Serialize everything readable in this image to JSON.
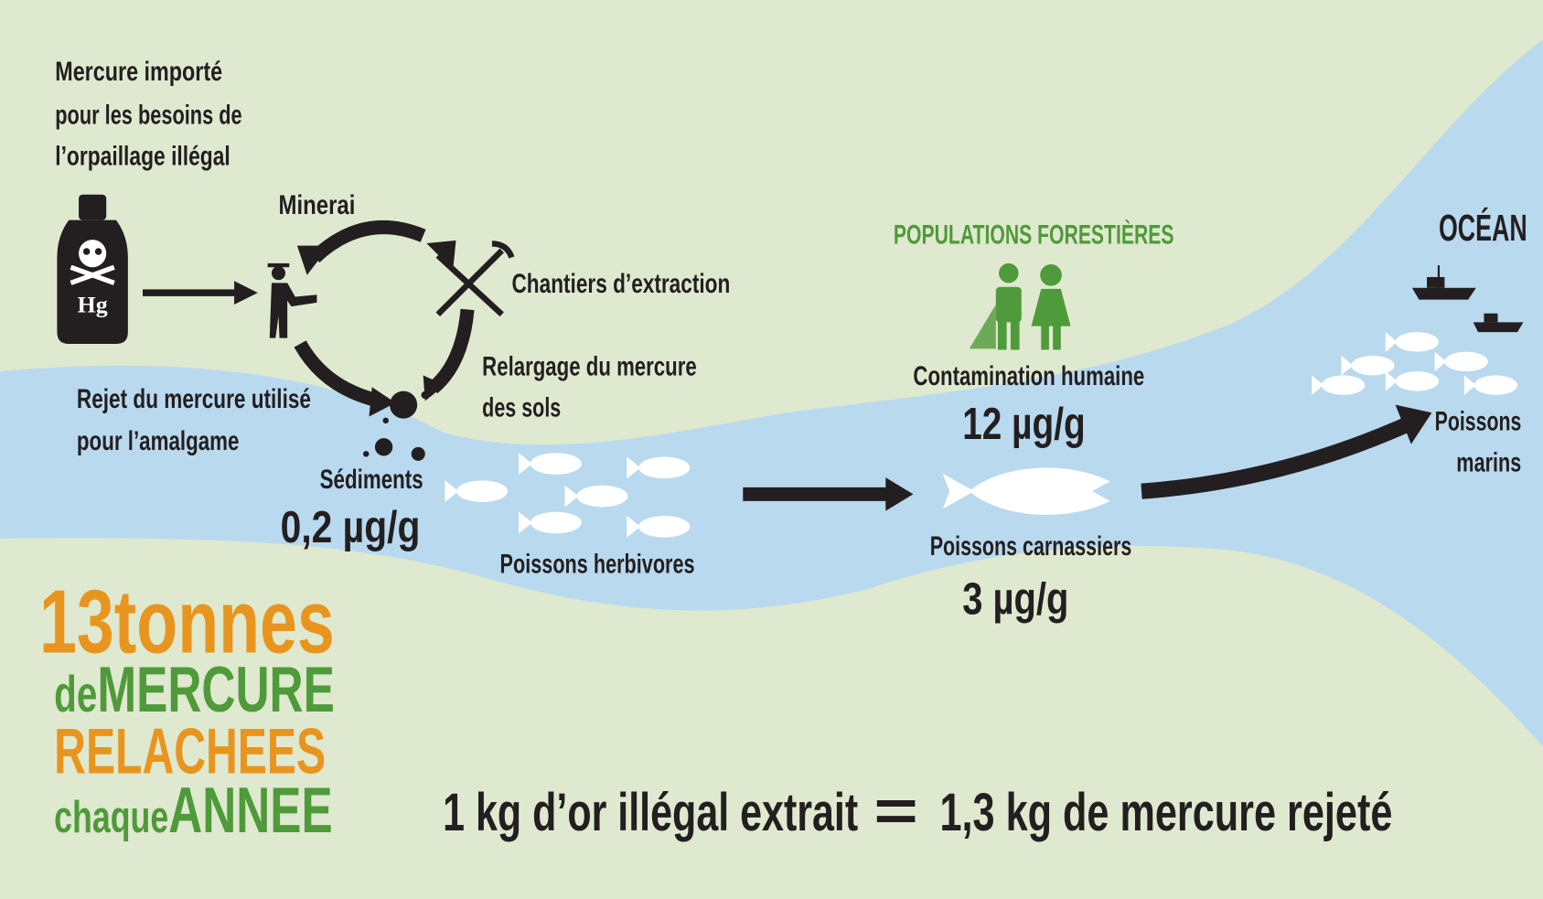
{
  "import": [
    "Mercure importé",
    "pour les besoins de",
    "l’orpaillage illégal"
  ],
  "bottle_label": "Hg",
  "minerai": "Minerai",
  "chantiers": "Chantiers d’extraction",
  "relargage": [
    "Relargage du mercure",
    "des sols"
  ],
  "rejet": [
    "Rejet du mercure utilisé",
    "pour l’amalgame"
  ],
  "sediments": {
    "label": "Sédiments",
    "value": "0,2 µg/g"
  },
  "herbivores": "Poissons herbivores",
  "populations": {
    "title": "POPULATIONS FORESTIÈRES",
    "label": "Contamination humaine",
    "value": "12 µg/g"
  },
  "carnassiers": {
    "label": "Poissons carnassiers",
    "value": "3 µg/g"
  },
  "ocean": {
    "title": "OCÉAN",
    "label": [
      "Poissons",
      "marins"
    ]
  },
  "headline": {
    "line1": [
      "13",
      "tonnes"
    ],
    "line2": [
      "de",
      "MERCURE"
    ],
    "line3": "RELACHEES",
    "line4": [
      "chaque",
      "ANNEE"
    ]
  },
  "equation": {
    "left": "1 kg d’or illégal extrait",
    "symbol": "=",
    "right": "1,3 kg de mercure rejeté"
  }
}
